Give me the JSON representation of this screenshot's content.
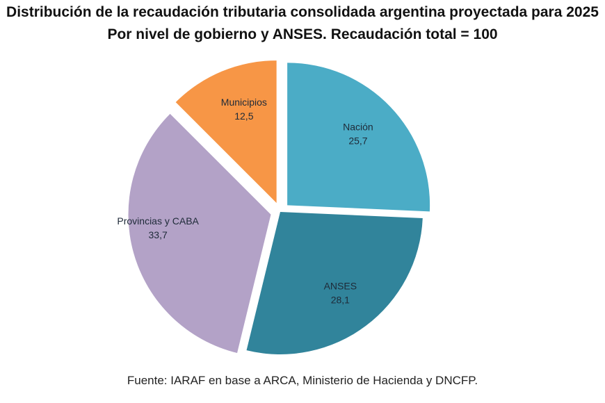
{
  "chart_data": {
    "type": "pie",
    "title": "Distribución de la recaudación tributaria consolidada argentina proyectada para 2025",
    "subtitle": "Por nivel de gobierno y ANSES. Recaudación total = 100",
    "categories": [
      "Nación",
      "ANSES",
      "Provincias y CABA",
      "Municipios"
    ],
    "values": [
      25.7,
      28.1,
      33.7,
      12.5
    ],
    "value_labels": [
      "25,7",
      "28,1",
      "33,7",
      "12,5"
    ],
    "colors": [
      "#4bacc6",
      "#31849b",
      "#b3a2c7",
      "#f79646"
    ],
    "exploded": [
      true,
      false,
      true,
      true
    ],
    "legend": "none",
    "start": "top",
    "direction": "clockwise",
    "source": "Fuente: IARAF en base a ARCA, Ministerio de Hacienda y DNCFP."
  }
}
